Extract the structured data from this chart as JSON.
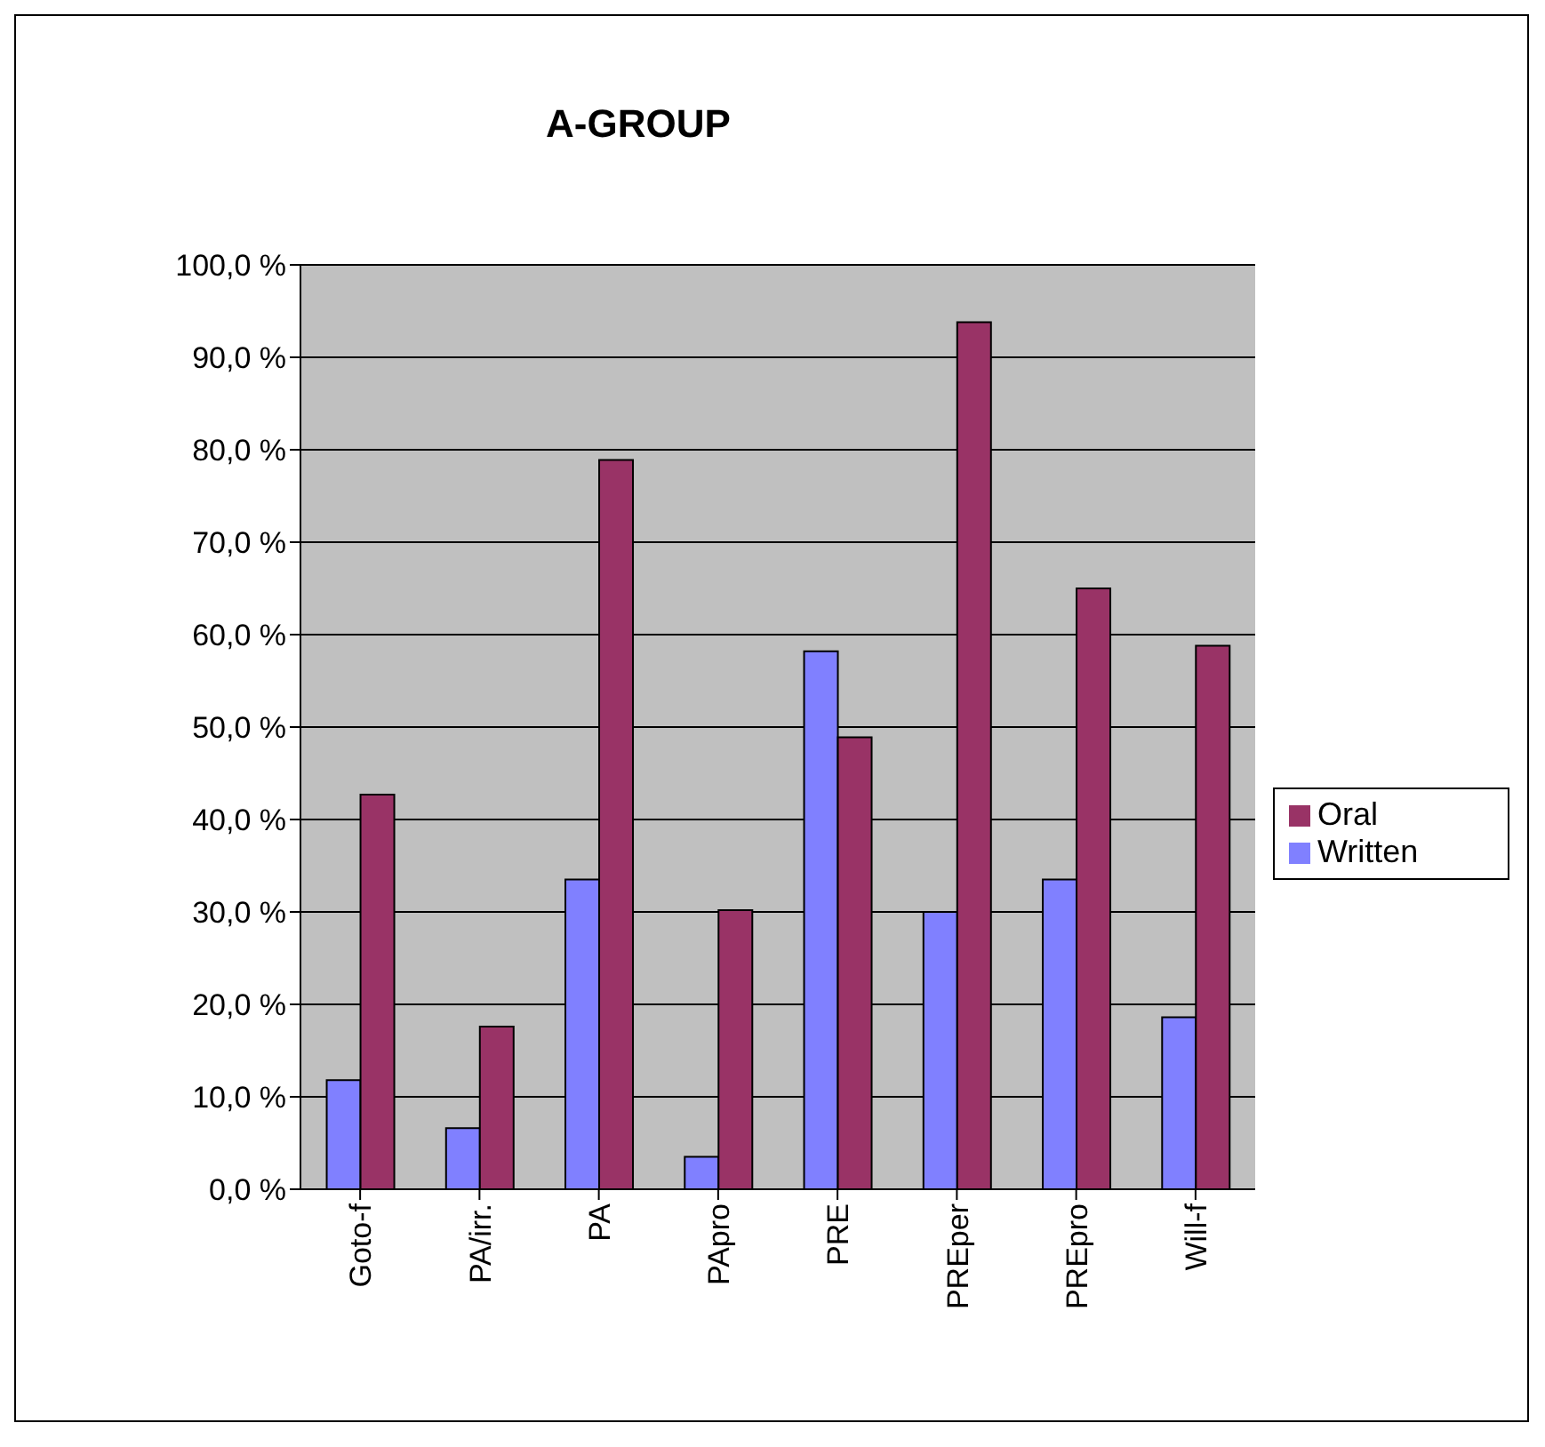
{
  "chart_data": {
    "type": "bar",
    "title": "A-GROUP",
    "categories": [
      "Goto-f",
      "PA/irr.",
      "PA",
      "PApro",
      "PRE",
      "PREper",
      "PREpro",
      "Will-f"
    ],
    "series": [
      {
        "name": "Written",
        "color": "#8080ff",
        "values": [
          11.8,
          6.6,
          33.5,
          3.5,
          58.2,
          30.0,
          33.5,
          18.6
        ]
      },
      {
        "name": "Oral",
        "color": "#993366",
        "values": [
          42.7,
          17.6,
          78.9,
          30.2,
          48.9,
          93.8,
          65.0,
          58.8
        ]
      }
    ],
    "ylim": [
      0,
      100
    ],
    "yticks": [
      {
        "value": 0,
        "label": "0,0 %"
      },
      {
        "value": 10,
        "label": "10,0 %"
      },
      {
        "value": 20,
        "label": "20,0 %"
      },
      {
        "value": 30,
        "label": "30,0 %"
      },
      {
        "value": 40,
        "label": "40,0 %"
      },
      {
        "value": 50,
        "label": "50,0 %"
      },
      {
        "value": 60,
        "label": "60,0 %"
      },
      {
        "value": 70,
        "label": "70,0 %"
      },
      {
        "value": 80,
        "label": "80,0 %"
      },
      {
        "value": 90,
        "label": "90,0 %"
      },
      {
        "value": 100,
        "label": "100,0 %"
      }
    ],
    "grid": "y",
    "legend": "right"
  }
}
